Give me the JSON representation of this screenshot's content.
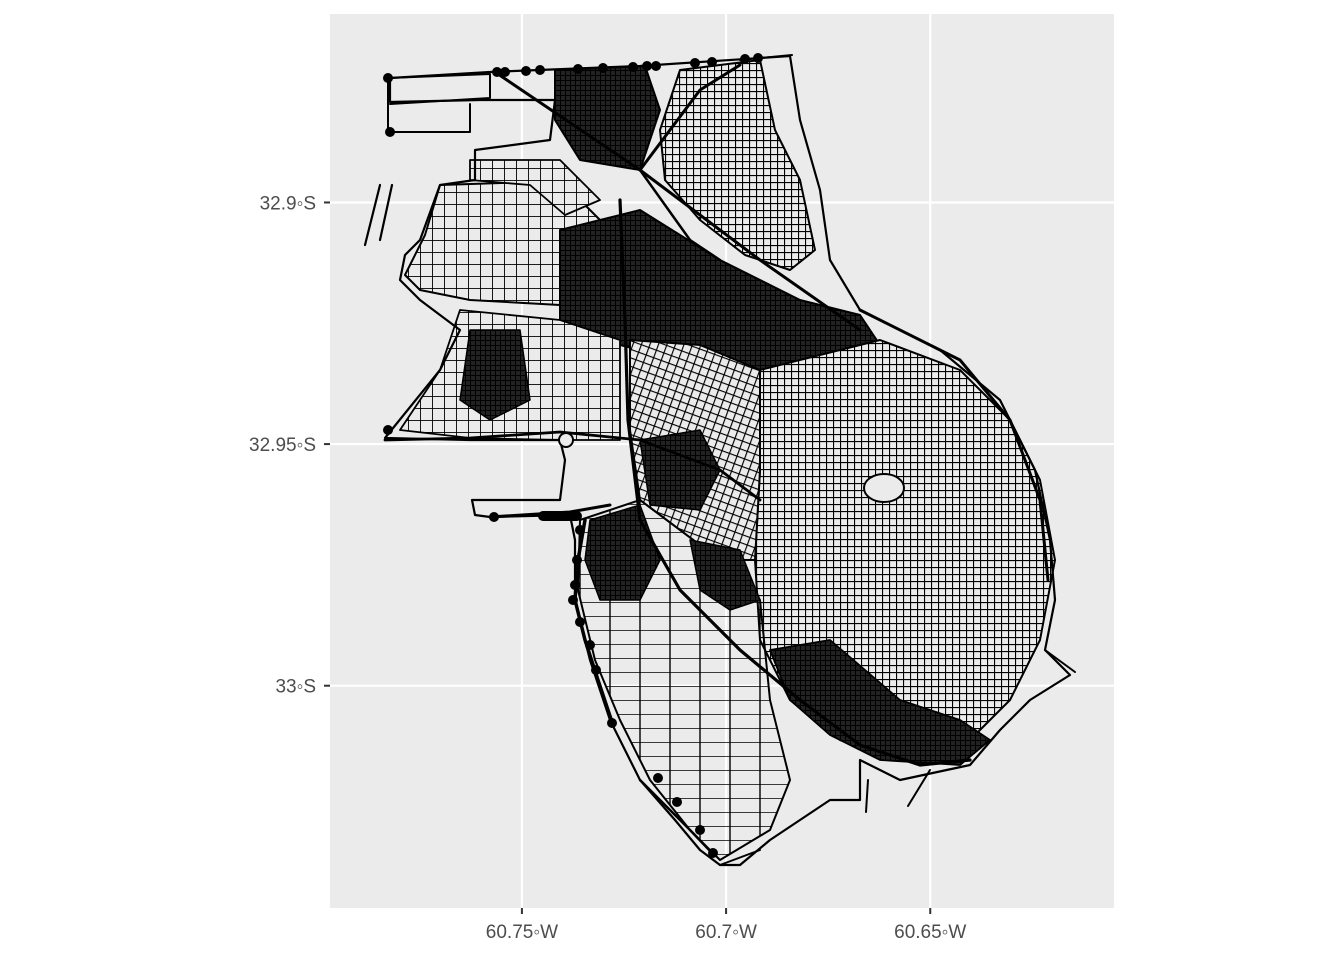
{
  "map": {
    "panel_background": "#ebebeb",
    "grid_color": "#ffffff",
    "road_color": "#000000",
    "x_axis": {
      "ticks": [
        {
          "value": -60.75,
          "label": "60.75◦W"
        },
        {
          "value": -60.7,
          "label": "60.7◦W"
        },
        {
          "value": -60.65,
          "label": "60.65◦W"
        }
      ],
      "range": [
        -60.797,
        -60.605
      ]
    },
    "y_axis": {
      "ticks": [
        {
          "value": -32.9,
          "label": "32.9◦S"
        },
        {
          "value": -32.95,
          "label": "32.95◦S"
        },
        {
          "value": -33.0,
          "label": "33◦S"
        }
      ],
      "range": [
        -33.046,
        -32.861
      ]
    }
  }
}
